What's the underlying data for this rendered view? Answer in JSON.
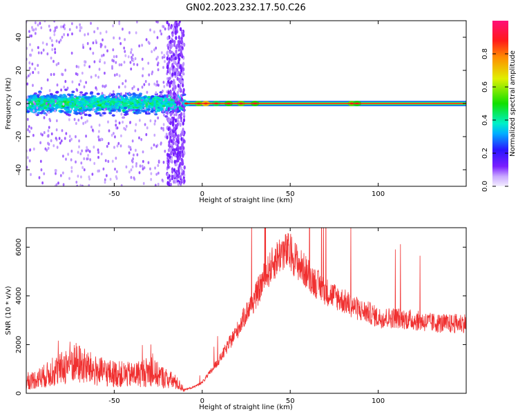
{
  "title": "GN02.2023.232.17.50.C26",
  "colors": {
    "snr_line": "#f03030",
    "axis": "#000000"
  },
  "chart_data": [
    {
      "type": "heatmap",
      "xlabel": "Height of straight line (km)",
      "ylabel": "Frequency (Hz)",
      "xlim": [
        -100,
        150
      ],
      "ylim": [
        -50,
        50
      ],
      "xticks": [
        -50,
        0,
        50,
        100
      ],
      "xtick_labels": [
        "-50",
        "0",
        "50",
        "100"
      ],
      "yticks": [
        -40,
        -20,
        0,
        20,
        40
      ],
      "ytick_labels": [
        "-40",
        "-20",
        "0",
        "20",
        "40"
      ],
      "grid": false,
      "colorbar": {
        "label": "Normalized spectral amplitude",
        "range": [
          0,
          1
        ],
        "ticks": [
          0.0,
          0.2,
          0.4,
          0.6,
          0.8
        ],
        "tick_labels": [
          "0.0",
          "0.2",
          "0.4",
          "0.6",
          "0.8"
        ],
        "colormap": "rainbow (lavender → violet → blue → cyan → green → yellow → red → magenta)"
      },
      "features": [
        {
          "x_range": [
            -100,
            -10
          ],
          "freq_center": 0,
          "freq_spread": 12,
          "amplitude": 0.35,
          "note": "broad noisy band"
        },
        {
          "x_range": [
            -20,
            -10
          ],
          "freq_range": [
            -50,
            50
          ],
          "amplitude": 0.15,
          "note": "vertical streaks"
        },
        {
          "x_range": [
            -10,
            150
          ],
          "freq_center": 0,
          "amplitude": 0.9,
          "note": "narrow carrier line"
        }
      ]
    },
    {
      "type": "line",
      "xlabel": "Height of straight line (km)",
      "ylabel": "SNR (10 * v/v)",
      "xlim": [
        -100,
        150
      ],
      "ylim": [
        0,
        6800
      ],
      "xticks": [
        -50,
        0,
        50,
        100
      ],
      "xtick_labels": [
        "-50",
        "0",
        "50",
        "100"
      ],
      "yticks": [
        0,
        2000,
        4000,
        6000
      ],
      "ytick_labels": [
        "0",
        "2000",
        "4000",
        "6000"
      ],
      "grid": false,
      "series": [
        {
          "x": [
            -100,
            -90,
            -80,
            -75,
            -70,
            -60,
            -50,
            -40,
            -30,
            -20,
            -15,
            -10,
            -5,
            0,
            5,
            10,
            15,
            20,
            25,
            30,
            35,
            40,
            45,
            50,
            55,
            60,
            65,
            70,
            75,
            80,
            85,
            90,
            95,
            100,
            110,
            120,
            130,
            140,
            150
          ],
          "y": [
            450,
            700,
            1000,
            1300,
            1200,
            900,
            800,
            750,
            900,
            600,
            450,
            150,
            250,
            450,
            900,
            1400,
            2000,
            2600,
            3300,
            3900,
            4700,
            5300,
            5800,
            5800,
            5300,
            4900,
            4500,
            4200,
            4000,
            3800,
            3600,
            3400,
            3300,
            3100,
            3100,
            3000,
            2900,
            2850,
            2900
          ]
        }
      ]
    }
  ]
}
